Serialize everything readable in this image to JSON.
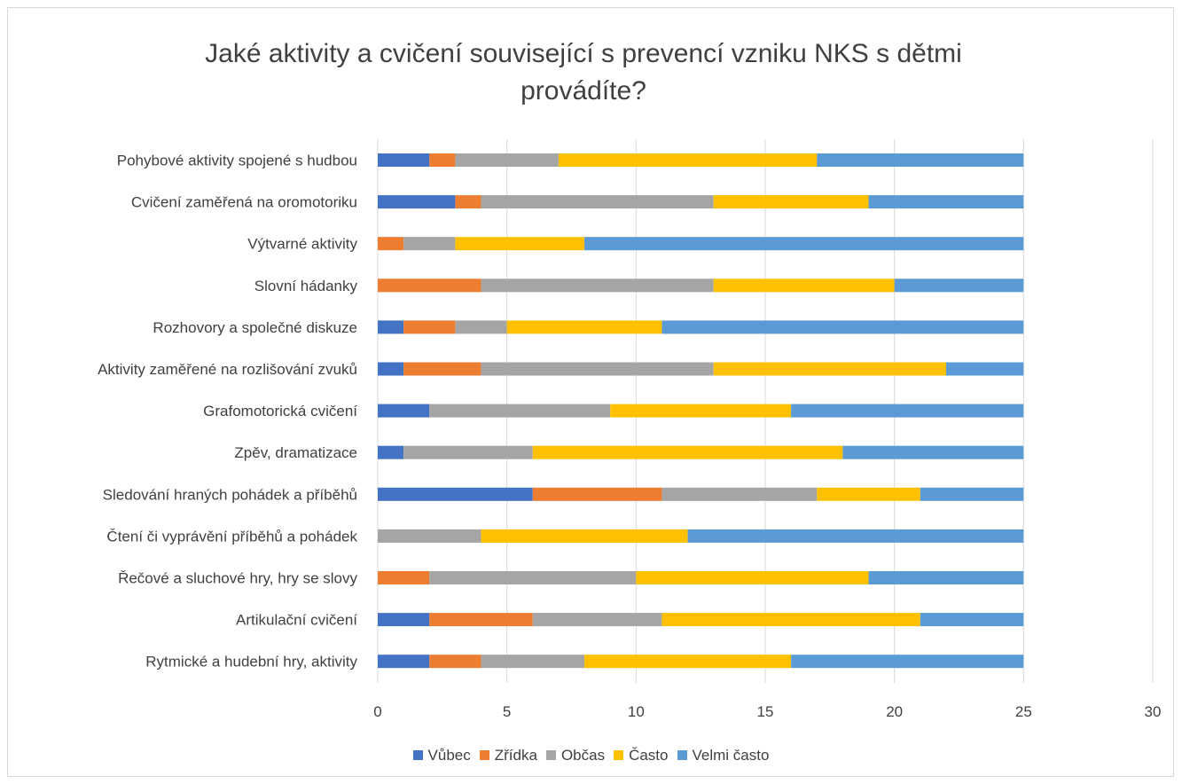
{
  "chart_data": {
    "type": "bar",
    "orientation": "horizontal",
    "stacked": true,
    "title_lines": [
      "Jaké aktivity a cvičení související s prevencí vzniku NKS s dětmi",
      "provádíte?"
    ],
    "xlim": [
      0,
      30
    ],
    "xticks": [
      "0",
      "5",
      "10",
      "15",
      "20",
      "25",
      "30"
    ],
    "grid": true,
    "legend_position": "bottom",
    "categories": [
      "Pohybové aktivity spojené s hudbou",
      "Cvičení zaměřená na oromotoriku",
      "Výtvarné aktivity",
      "Slovní hádanky",
      "Rozhovory a společné diskuze",
      "Aktivity zaměřené na rozlišování zvuků",
      "Grafomotorická cvičení",
      "Zpěv, dramatizace",
      "Sledování hraných pohádek a příběhů",
      "Čtení či vyprávění příběhů a pohádek",
      "Řečové a sluchové hry, hry se slovy",
      "Artikulační cvičení",
      "Rytmické a hudební hry, aktivity"
    ],
    "series": [
      {
        "name": "Vůbec",
        "color": "#4472c4",
        "values": [
          2,
          3,
          0,
          0,
          1,
          1,
          2,
          1,
          6,
          0,
          0,
          2,
          2
        ]
      },
      {
        "name": "Zřídka",
        "color": "#ed7d31",
        "values": [
          1,
          1,
          1,
          4,
          2,
          3,
          0,
          0,
          5,
          0,
          2,
          4,
          2
        ]
      },
      {
        "name": "Občas",
        "color": "#a5a5a5",
        "values": [
          4,
          9,
          2,
          9,
          2,
          9,
          7,
          5,
          6,
          4,
          8,
          5,
          4
        ]
      },
      {
        "name": "Často",
        "color": "#ffc000",
        "values": [
          10,
          6,
          5,
          7,
          6,
          9,
          7,
          12,
          4,
          8,
          9,
          10,
          8
        ]
      },
      {
        "name": "Velmi často",
        "color": "#5b9bd5",
        "values": [
          8,
          6,
          17,
          5,
          14,
          3,
          9,
          7,
          4,
          13,
          6,
          4,
          9
        ]
      }
    ]
  }
}
